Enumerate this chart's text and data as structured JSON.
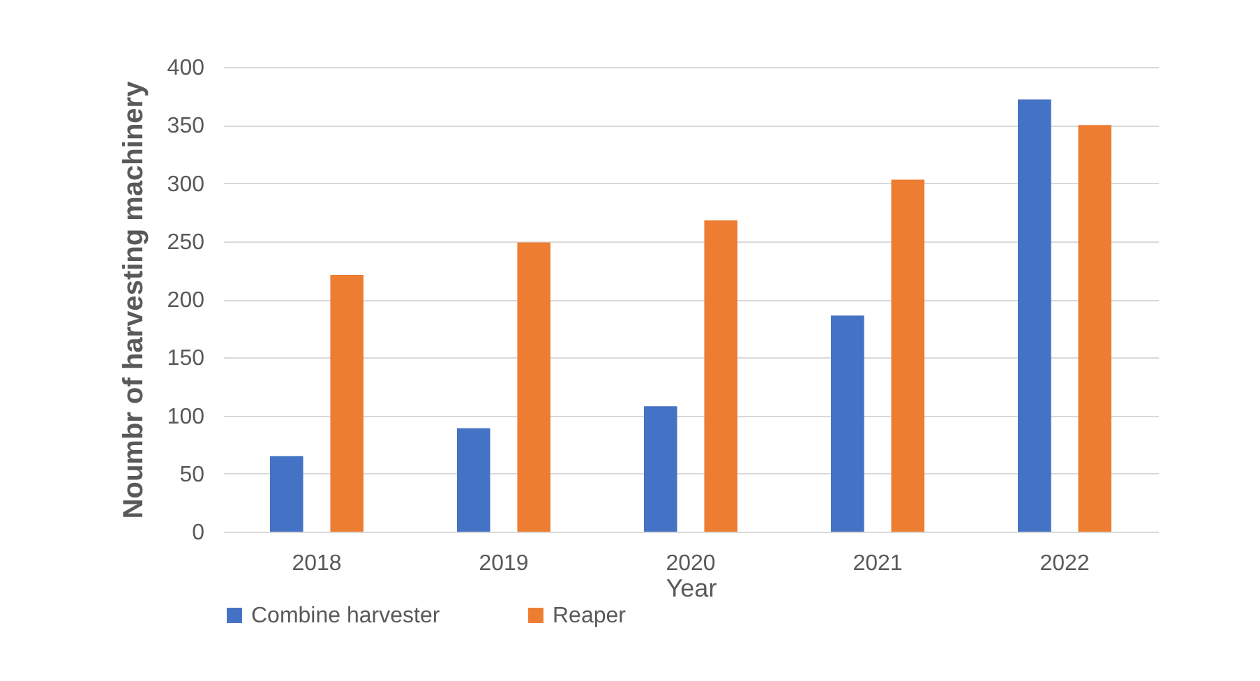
{
  "chart_data": {
    "type": "bar",
    "xlabel": "Year",
    "ylabel": "Noumbr of harvesting machinery",
    "categories": [
      "2018",
      "2019",
      "2020",
      "2021",
      "2022"
    ],
    "series": [
      {
        "name": "Combine harvester",
        "color": "#4472c4",
        "values": [
          65,
          89,
          108,
          186,
          372
        ]
      },
      {
        "name": "Reaper",
        "color": "#ed7d31",
        "values": [
          221,
          249,
          268,
          303,
          350
        ]
      }
    ],
    "ylim": [
      0,
      400
    ],
    "yticks": [
      0,
      50,
      100,
      150,
      200,
      250,
      300,
      350,
      400
    ],
    "grid": "y",
    "legend": "bottom"
  }
}
